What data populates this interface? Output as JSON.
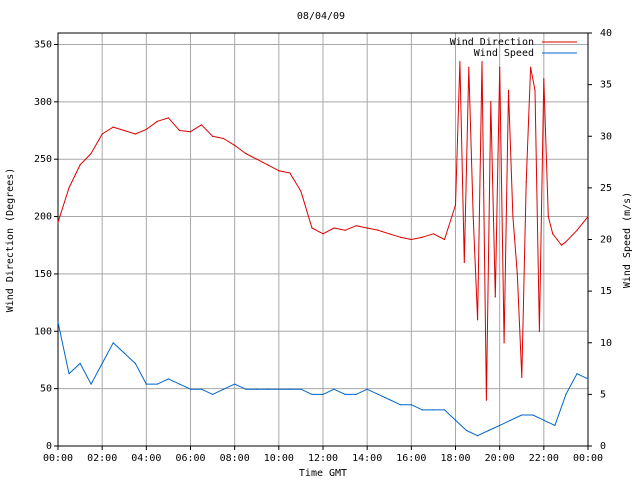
{
  "chart_data": {
    "type": "line",
    "title": "08/04/09",
    "xlabel": "Time GMT",
    "ylabel_left": "Wind Direction (Degrees)",
    "ylabel_right": "Wind Speed (m/s)",
    "x_ticks": [
      "00:00",
      "02:00",
      "04:00",
      "06:00",
      "08:00",
      "10:00",
      "12:00",
      "14:00",
      "16:00",
      "18:00",
      "20:00",
      "22:00",
      "00:00"
    ],
    "xlim_hours": [
      0,
      24
    ],
    "ylim_left": [
      0,
      360
    ],
    "ylim_right": [
      0,
      40
    ],
    "y_ticks_left": [
      0,
      50,
      100,
      150,
      200,
      250,
      300,
      350
    ],
    "y_ticks_right": [
      0,
      5,
      10,
      15,
      20,
      25,
      30,
      35,
      40
    ],
    "grid": true,
    "legend_position": "top-right",
    "series": [
      {
        "name": "Wind Direction",
        "axis": "left",
        "color": "#dd0000",
        "x_hours": [
          0,
          0.5,
          1,
          1.5,
          2,
          2.5,
          3,
          3.5,
          4,
          4.5,
          5,
          5.5,
          6,
          6.5,
          7,
          7.5,
          8,
          8.5,
          9,
          9.5,
          10,
          10.5,
          11,
          11.5,
          12,
          12.5,
          13,
          13.5,
          14,
          14.5,
          15,
          15.5,
          16,
          16.5,
          17,
          17.5,
          18,
          18.2,
          18.4,
          18.6,
          18.8,
          19,
          19.2,
          19.4,
          19.6,
          19.8,
          20,
          20.2,
          20.4,
          20.6,
          20.8,
          21,
          21.2,
          21.4,
          21.6,
          21.8,
          22,
          22.2,
          22.4,
          22.6,
          22.8,
          23,
          23.5,
          24
        ],
        "values": [
          195,
          225,
          245,
          255,
          272,
          278,
          275,
          272,
          276,
          283,
          286,
          275,
          274,
          280,
          270,
          268,
          262,
          255,
          250,
          245,
          240,
          238,
          222,
          190,
          185,
          190,
          188,
          192,
          190,
          188,
          185,
          182,
          180,
          182,
          185,
          180,
          210,
          335,
          160,
          330,
          200,
          110,
          335,
          40,
          300,
          130,
          330,
          90,
          310,
          200,
          150,
          60,
          230,
          330,
          310,
          100,
          320,
          200,
          185,
          180,
          175,
          178,
          188,
          200
        ]
      },
      {
        "name": "Wind Speed",
        "axis": "right",
        "color": "#0066cc",
        "x_hours": [
          0,
          0.5,
          1,
          1.5,
          2,
          2.5,
          3,
          3.5,
          4,
          4.5,
          5,
          5.5,
          6,
          6.5,
          7,
          7.5,
          8,
          8.5,
          9,
          9.5,
          10,
          10.5,
          11,
          11.5,
          12,
          12.5,
          13,
          13.5,
          14,
          14.5,
          15,
          15.5,
          16,
          16.5,
          17,
          17.5,
          18,
          18.5,
          19,
          19.5,
          20,
          20.5,
          21,
          21.5,
          22,
          22.5,
          23,
          23.5,
          24
        ],
        "values": [
          12,
          7,
          8,
          6,
          8,
          10,
          9,
          8,
          6,
          6,
          6.5,
          6,
          5.5,
          5.5,
          5,
          5.5,
          6,
          5.5,
          5.5,
          5.5,
          5.5,
          5.5,
          5.5,
          5,
          5,
          5.5,
          5,
          5,
          5.5,
          5,
          4.5,
          4,
          4,
          3.5,
          3.5,
          3.5,
          2.5,
          1.5,
          1,
          1.5,
          2,
          2.5,
          3,
          3,
          2.5,
          2,
          5,
          7,
          6.5
        ]
      }
    ]
  }
}
